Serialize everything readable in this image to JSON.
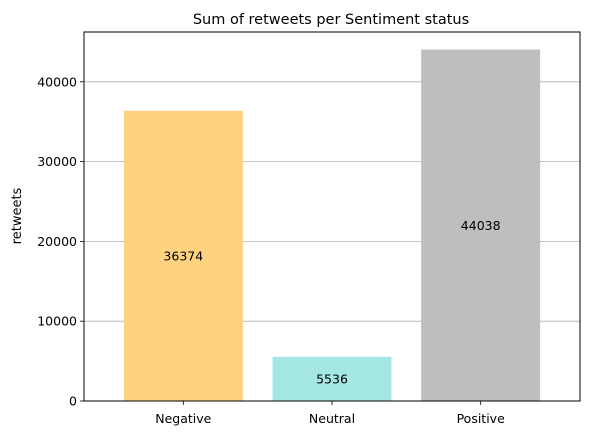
{
  "chart_data": {
    "type": "bar",
    "title": "Sum of retweets per Sentiment status",
    "xlabel": "",
    "ylabel": "retweets",
    "categories": [
      "Negative",
      "Neutral",
      "Positive"
    ],
    "values": [
      36374,
      5536,
      44038
    ],
    "data_labels": [
      "36374",
      "5536",
      "44038"
    ],
    "colors": [
      "#ffd280",
      "#a4e7e5",
      "#bebebe"
    ],
    "ylim": [
      0,
      46240
    ],
    "yticks": [
      0,
      10000,
      20000,
      30000,
      40000
    ],
    "ytick_labels": [
      "0",
      "10000",
      "20000",
      "30000",
      "40000"
    ],
    "grid": "y-axis",
    "legend": "none"
  }
}
